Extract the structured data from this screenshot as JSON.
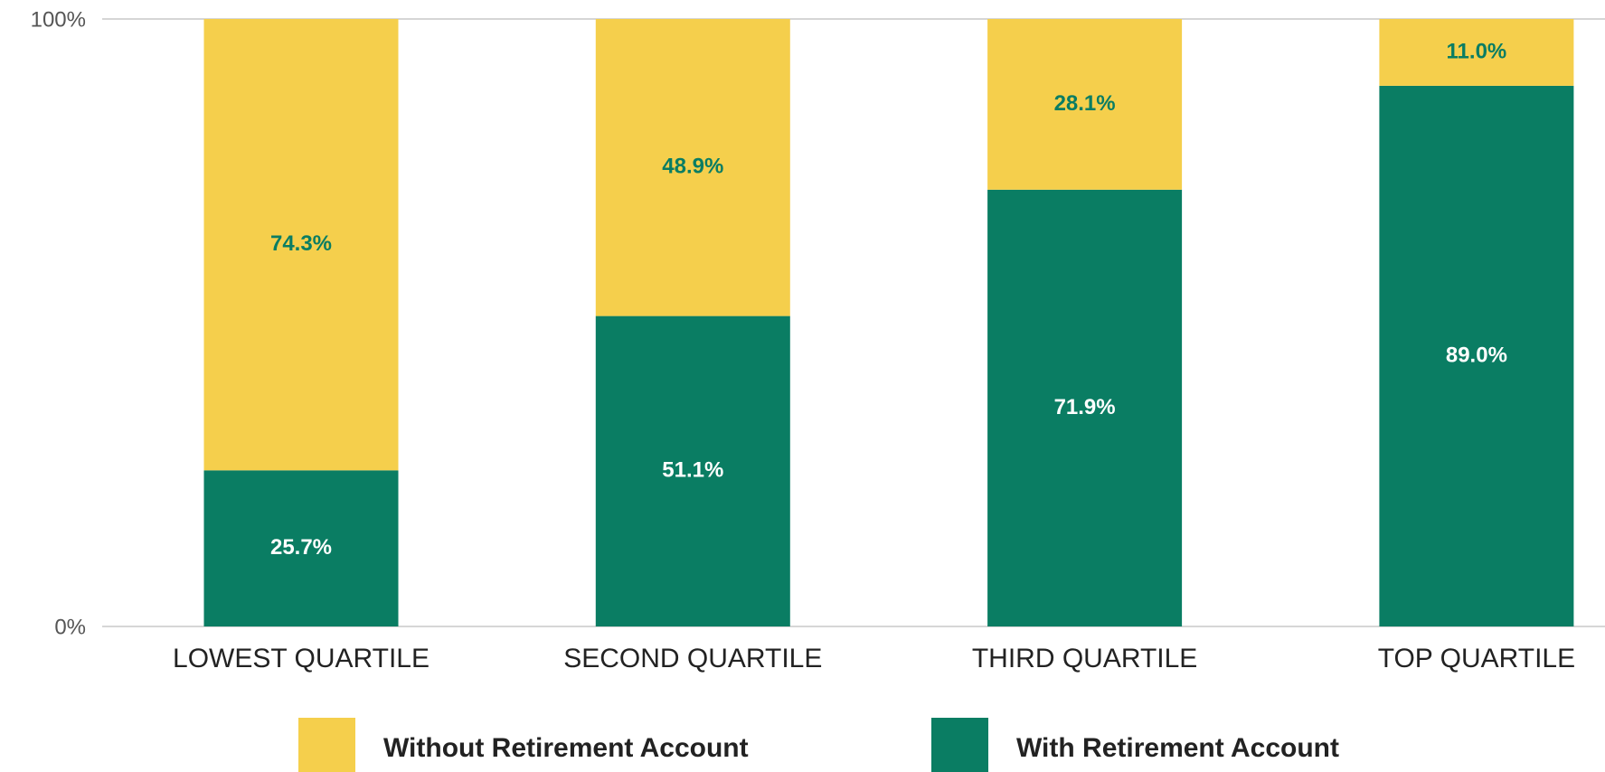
{
  "chart_data": {
    "type": "stacked_bar",
    "categories": [
      "LOWEST QUARTILE",
      "SECOND QUARTILE",
      "THIRD QUARTILE",
      "TOP QUARTILE"
    ],
    "series": [
      {
        "name": "With Retirement Account",
        "color": "#0a7d63",
        "label_color": "#ffffff",
        "values": [
          25.7,
          51.1,
          71.9,
          89.0
        ],
        "value_labels": [
          "25.7%",
          "51.1%",
          "71.9%",
          "89.0%"
        ]
      },
      {
        "name": "Without Retirement Account",
        "color": "#f5cf4c",
        "label_color": "#0a7d63",
        "values": [
          74.3,
          48.9,
          28.1,
          11.0
        ],
        "value_labels": [
          "74.3%",
          "48.9%",
          "28.1%",
          "11.0%"
        ]
      }
    ],
    "ylim": [
      0,
      100
    ],
    "yticks": [
      {
        "value": 0,
        "label": "0%"
      },
      {
        "value": 100,
        "label": "100%"
      }
    ],
    "grid": true
  }
}
